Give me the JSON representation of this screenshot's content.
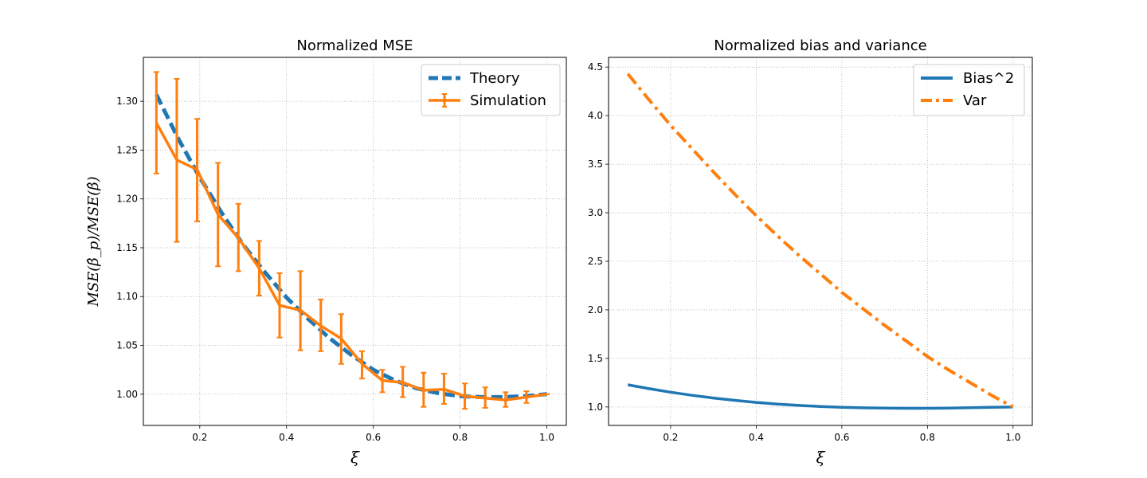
{
  "chart_data": [
    {
      "type": "line",
      "title": "Normalized MSE",
      "xlabel": "ξ",
      "ylabel": "MSE(β̂_p)/MSE(β̂)",
      "xlim": [
        0.07,
        1.045
      ],
      "ylim": [
        0.968,
        1.345
      ],
      "xticks": [
        "0.2",
        "0.4",
        "0.6",
        "0.8",
        "1.0"
      ],
      "yticks": [
        "1.00",
        "1.05",
        "1.10",
        "1.15",
        "1.20",
        "1.25",
        "1.30"
      ],
      "grid": true,
      "legend_position": "top-right",
      "series": [
        {
          "name": "Theory",
          "style": "dashed",
          "color": "#1f77b4",
          "x": [
            0.1,
            0.15,
            0.2,
            0.25,
            0.3,
            0.35,
            0.4,
            0.45,
            0.5,
            0.55,
            0.6,
            0.65,
            0.7,
            0.75,
            0.8,
            0.85,
            0.9,
            0.95,
            1.0
          ],
          "y": [
            1.307,
            1.262,
            1.222,
            1.186,
            1.153,
            1.125,
            1.099,
            1.077,
            1.057,
            1.04,
            1.025,
            1.014,
            1.006,
            1.001,
            0.998,
            0.997,
            0.997,
            0.998,
            1.0
          ]
        },
        {
          "name": "Simulation",
          "style": "errorbar",
          "color": "#ff7f0e",
          "x": [
            0.1,
            0.147,
            0.194,
            0.242,
            0.289,
            0.337,
            0.384,
            0.432,
            0.479,
            0.526,
            0.574,
            0.621,
            0.668,
            0.716,
            0.763,
            0.811,
            0.858,
            0.905,
            0.953,
            1.0
          ],
          "y": [
            1.278,
            1.24,
            1.23,
            1.184,
            1.16,
            1.129,
            1.091,
            1.086,
            1.07,
            1.057,
            1.031,
            1.014,
            1.012,
            1.004,
            1.005,
            0.998,
            0.996,
            0.994,
            0.997,
            1.0
          ],
          "err_low": [
            1.226,
            1.156,
            1.177,
            1.131,
            1.126,
            1.101,
            1.058,
            1.045,
            1.044,
            1.031,
            1.016,
            1.002,
            0.997,
            0.987,
            0.99,
            0.985,
            0.986,
            0.987,
            0.991,
            1.0
          ],
          "err_high": [
            1.33,
            1.323,
            1.282,
            1.237,
            1.195,
            1.157,
            1.124,
            1.126,
            1.097,
            1.082,
            1.044,
            1.025,
            1.028,
            1.022,
            1.021,
            1.011,
            1.007,
            1.002,
            1.003,
            1.0
          ]
        }
      ]
    },
    {
      "type": "line",
      "title": "Normalized bias and variance",
      "xlabel": "ξ",
      "ylabel": "",
      "xlim": [
        0.055,
        1.045
      ],
      "ylim": [
        0.81,
        4.6
      ],
      "xticks": [
        "0.2",
        "0.4",
        "0.6",
        "0.8",
        "1.0"
      ],
      "yticks": [
        "1.0",
        "1.5",
        "2.0",
        "2.5",
        "3.0",
        "3.5",
        "4.0",
        "4.5"
      ],
      "grid": true,
      "legend_position": "top-right",
      "series": [
        {
          "name": "Bias^2",
          "style": "solid",
          "color": "#1f77b4",
          "x": [
            0.1,
            0.15,
            0.2,
            0.25,
            0.3,
            0.35,
            0.4,
            0.45,
            0.5,
            0.55,
            0.6,
            0.65,
            0.7,
            0.75,
            0.8,
            0.85,
            0.9,
            0.95,
            1.0
          ],
          "y": [
            1.228,
            1.188,
            1.152,
            1.12,
            1.092,
            1.068,
            1.047,
            1.03,
            1.016,
            1.005,
            0.997,
            0.991,
            0.988,
            0.986,
            0.986,
            0.988,
            0.992,
            0.996,
            1.0
          ]
        },
        {
          "name": "Var",
          "style": "dashdot",
          "color": "#ff7f0e",
          "x": [
            0.1,
            0.15,
            0.2,
            0.25,
            0.3,
            0.35,
            0.4,
            0.45,
            0.5,
            0.55,
            0.6,
            0.65,
            0.7,
            0.75,
            0.8,
            0.85,
            0.9,
            0.95,
            1.0
          ],
          "y": [
            4.43,
            4.16,
            3.9,
            3.66,
            3.42,
            3.19,
            2.97,
            2.76,
            2.56,
            2.37,
            2.18,
            2.01,
            1.84,
            1.68,
            1.52,
            1.38,
            1.25,
            1.12,
            1.0
          ]
        }
      ]
    }
  ]
}
